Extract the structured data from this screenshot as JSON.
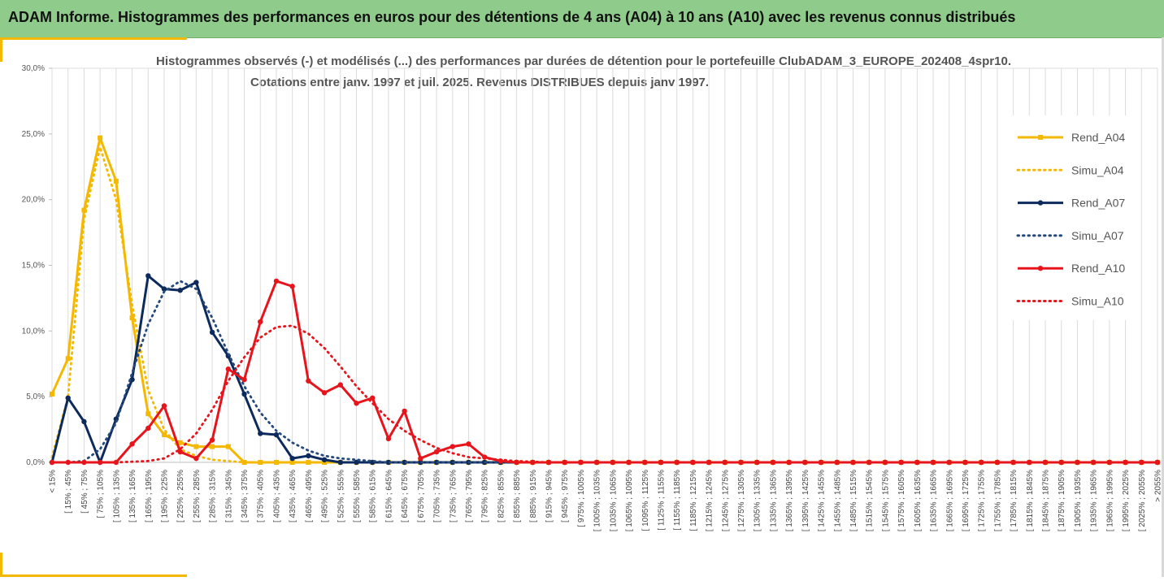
{
  "header": {
    "title": "ADAM Informe. Histogrammes des performances en euros pour des détentions de 4 ans (A04) à 10 ans (A10) avec les revenus connus distribués"
  },
  "chart_data": {
    "type": "line",
    "title": "Histogrammes observés (-) et modélisés (...) des performances par durées de détention pour le portefeuille ClubADAM_3_EUROPE_202408_4spr10.",
    "subtitle": "Cotations entre janv. 1997 et juil. 2025. Revenus DISTRIBUES depuis janv 1997.",
    "xlabel": "",
    "ylabel": "",
    "ylim": [
      0,
      0.3
    ],
    "y_ticks": [
      "0,0%",
      "5,0%",
      "10,0%",
      "15,0%",
      "20,0%",
      "25,0%",
      "30,0%"
    ],
    "grid": true,
    "legend_position": "right",
    "categories": [
      "< 15%",
      "[ 15% ; 45%",
      "[ 45% ; 75%",
      "[ 75% ; 105%",
      "[ 105% ; 135%",
      "[ 135% ; 165%",
      "[ 165% ; 195%",
      "[ 195% ; 225%",
      "[ 225% ; 255%",
      "[ 255% ; 285%",
      "[ 285% ; 315%",
      "[ 315% ; 345%",
      "[ 345% ; 375%",
      "[ 375% ; 405%",
      "[ 405% ; 435%",
      "[ 435% ; 465%",
      "[ 465% ; 495%",
      "[ 495% ; 525%",
      "[ 525% ; 555%",
      "[ 555% ; 585%",
      "[ 585% ; 615%",
      "[ 615% ; 645%",
      "[ 645% ; 675%",
      "[ 675% ; 705%",
      "[ 705% ; 735%",
      "[ 735% ; 765%",
      "[ 765% ; 795%",
      "[ 795% ; 825%",
      "[ 825% ; 855%",
      "[ 855% ; 885%",
      "[ 885% ; 915%",
      "[ 915% ; 945%",
      "[ 945% ; 975%",
      "[ 975% ; 1005%",
      "[ 1005% ; 1035%",
      "[ 1035% ; 1065%",
      "[ 1065% ; 1095%",
      "[ 1095% ; 1125%",
      "[ 1125% ; 1155%",
      "[ 1155% ; 1185%",
      "[ 1185% ; 1215%",
      "[ 1215% ; 1245%",
      "[ 1245% ; 1275%",
      "[ 1275% ; 1305%",
      "[ 1305% ; 1335%",
      "[ 1335% ; 1365%",
      "[ 1365% ; 1395%",
      "[ 1395% ; 1425%",
      "[ 1425% ; 1455%",
      "[ 1455% ; 1485%",
      "[ 1485% ; 1515%",
      "[ 1515% ; 1545%",
      "[ 1545% ; 1575%",
      "[ 1575% ; 1605%",
      "[ 1605% ; 1635%",
      "[ 1635% ; 1665%",
      "[ 1665% ; 1695%",
      "[ 1695% ; 1725%",
      "[ 1725% ; 1755%",
      "[ 1755% ; 1785%",
      "[ 1785% ; 1815%",
      "[ 1815% ; 1845%",
      "[ 1845% ; 1875%",
      "[ 1875% ; 1905%",
      "[ 1905% ; 1935%",
      "[ 1935% ; 1965%",
      "[ 1965% ; 1995%",
      "[ 1995% ; 2025%",
      "[ 2025% ; 2055%",
      "> 2055%"
    ],
    "series": [
      {
        "name": "Rend_A04",
        "style": "solid",
        "marker": "square",
        "color": "#f5b800",
        "values": [
          0.052,
          0.079,
          0.192,
          0.247,
          0.214,
          0.11,
          0.037,
          0.021,
          0.015,
          0.012,
          0.012,
          0.012,
          0,
          0,
          0,
          0,
          0,
          0,
          0,
          0,
          0,
          0,
          0,
          0,
          0,
          0,
          0,
          0,
          0,
          0,
          0,
          0,
          0,
          0,
          0,
          0,
          0,
          0,
          0,
          0,
          0,
          0,
          0,
          0,
          0,
          0,
          0,
          0,
          0,
          0,
          0,
          0,
          0,
          0,
          0,
          0,
          0,
          0,
          0,
          0,
          0,
          0,
          0,
          0,
          0,
          0,
          0,
          0,
          0,
          0
        ]
      },
      {
        "name": "Simu_A04",
        "style": "dotted",
        "marker": "none",
        "color": "#f5b800",
        "values": [
          0.004,
          0.05,
          0.185,
          0.24,
          0.2,
          0.12,
          0.055,
          0.025,
          0.01,
          0.005,
          0.002,
          0.001,
          0,
          0,
          0,
          0,
          0,
          0,
          0,
          0,
          0,
          0,
          0,
          0,
          0,
          0,
          0,
          0,
          0,
          0,
          0,
          0,
          0,
          0,
          0,
          0,
          0,
          0,
          0,
          0,
          0,
          0,
          0,
          0,
          0,
          0,
          0,
          0,
          0,
          0,
          0,
          0,
          0,
          0,
          0,
          0,
          0,
          0,
          0,
          0,
          0,
          0,
          0,
          0,
          0,
          0,
          0,
          0,
          0,
          0
        ]
      },
      {
        "name": "Rend_A07",
        "style": "solid",
        "marker": "circle",
        "color": "#0d2a5c",
        "values": [
          0,
          0.049,
          0.031,
          0,
          0.033,
          0.063,
          0.142,
          0.132,
          0.131,
          0.137,
          0.099,
          0.081,
          0.052,
          0.022,
          0.021,
          0.003,
          0.005,
          0.002,
          0,
          0,
          0,
          0,
          0,
          0,
          0,
          0,
          0,
          0,
          0,
          0,
          0,
          0,
          0,
          0,
          0,
          0,
          0,
          0,
          0,
          0,
          0,
          0,
          0,
          0,
          0,
          0,
          0,
          0,
          0,
          0,
          0,
          0,
          0,
          0,
          0,
          0,
          0,
          0,
          0,
          0,
          0,
          0,
          0,
          0,
          0,
          0,
          0,
          0,
          0,
          0
        ]
      },
      {
        "name": "Simu_A07",
        "style": "dotted",
        "marker": "none",
        "color": "#24497a",
        "values": [
          0,
          0,
          0.001,
          0.01,
          0.03,
          0.068,
          0.105,
          0.13,
          0.138,
          0.132,
          0.11,
          0.083,
          0.058,
          0.038,
          0.024,
          0.015,
          0.009,
          0.005,
          0.003,
          0.002,
          0.001,
          0,
          0,
          0,
          0,
          0,
          0,
          0,
          0,
          0,
          0,
          0,
          0,
          0,
          0,
          0,
          0,
          0,
          0,
          0,
          0,
          0,
          0,
          0,
          0,
          0,
          0,
          0,
          0,
          0,
          0,
          0,
          0,
          0,
          0,
          0,
          0,
          0,
          0,
          0,
          0,
          0,
          0,
          0,
          0,
          0,
          0,
          0,
          0,
          0
        ]
      },
      {
        "name": "Rend_A10",
        "style": "solid",
        "marker": "circle",
        "color": "#e8141c",
        "values": [
          0,
          0,
          0,
          0,
          0,
          0.014,
          0.026,
          0.043,
          0.008,
          0.003,
          0.017,
          0.071,
          0.063,
          0.107,
          0.138,
          0.134,
          0.062,
          0.053,
          0.059,
          0.045,
          0.049,
          0.018,
          0.039,
          0.003,
          0.008,
          0.012,
          0.014,
          0.004,
          0.001,
          0,
          0,
          0,
          0,
          0,
          0,
          0,
          0,
          0,
          0,
          0,
          0,
          0,
          0,
          0,
          0,
          0,
          0,
          0,
          0,
          0,
          0,
          0,
          0,
          0,
          0,
          0,
          0,
          0,
          0,
          0,
          0,
          0,
          0,
          0,
          0,
          0,
          0,
          0,
          0,
          0
        ]
      },
      {
        "name": "Simu_A10",
        "style": "dotted",
        "marker": "none",
        "color": "#e8141c",
        "values": [
          0,
          0,
          0,
          0,
          0,
          0.0005,
          0.001,
          0.003,
          0.01,
          0.022,
          0.04,
          0.062,
          0.08,
          0.095,
          0.103,
          0.104,
          0.098,
          0.087,
          0.073,
          0.058,
          0.045,
          0.033,
          0.024,
          0.017,
          0.011,
          0.007,
          0.004,
          0.003,
          0.002,
          0.001,
          0.0005,
          0,
          0,
          0,
          0,
          0,
          0,
          0,
          0,
          0,
          0,
          0,
          0,
          0,
          0,
          0,
          0,
          0,
          0,
          0,
          0,
          0,
          0,
          0,
          0,
          0,
          0,
          0,
          0,
          0,
          0,
          0,
          0,
          0,
          0,
          0,
          0,
          0,
          0,
          0
        ]
      }
    ]
  }
}
